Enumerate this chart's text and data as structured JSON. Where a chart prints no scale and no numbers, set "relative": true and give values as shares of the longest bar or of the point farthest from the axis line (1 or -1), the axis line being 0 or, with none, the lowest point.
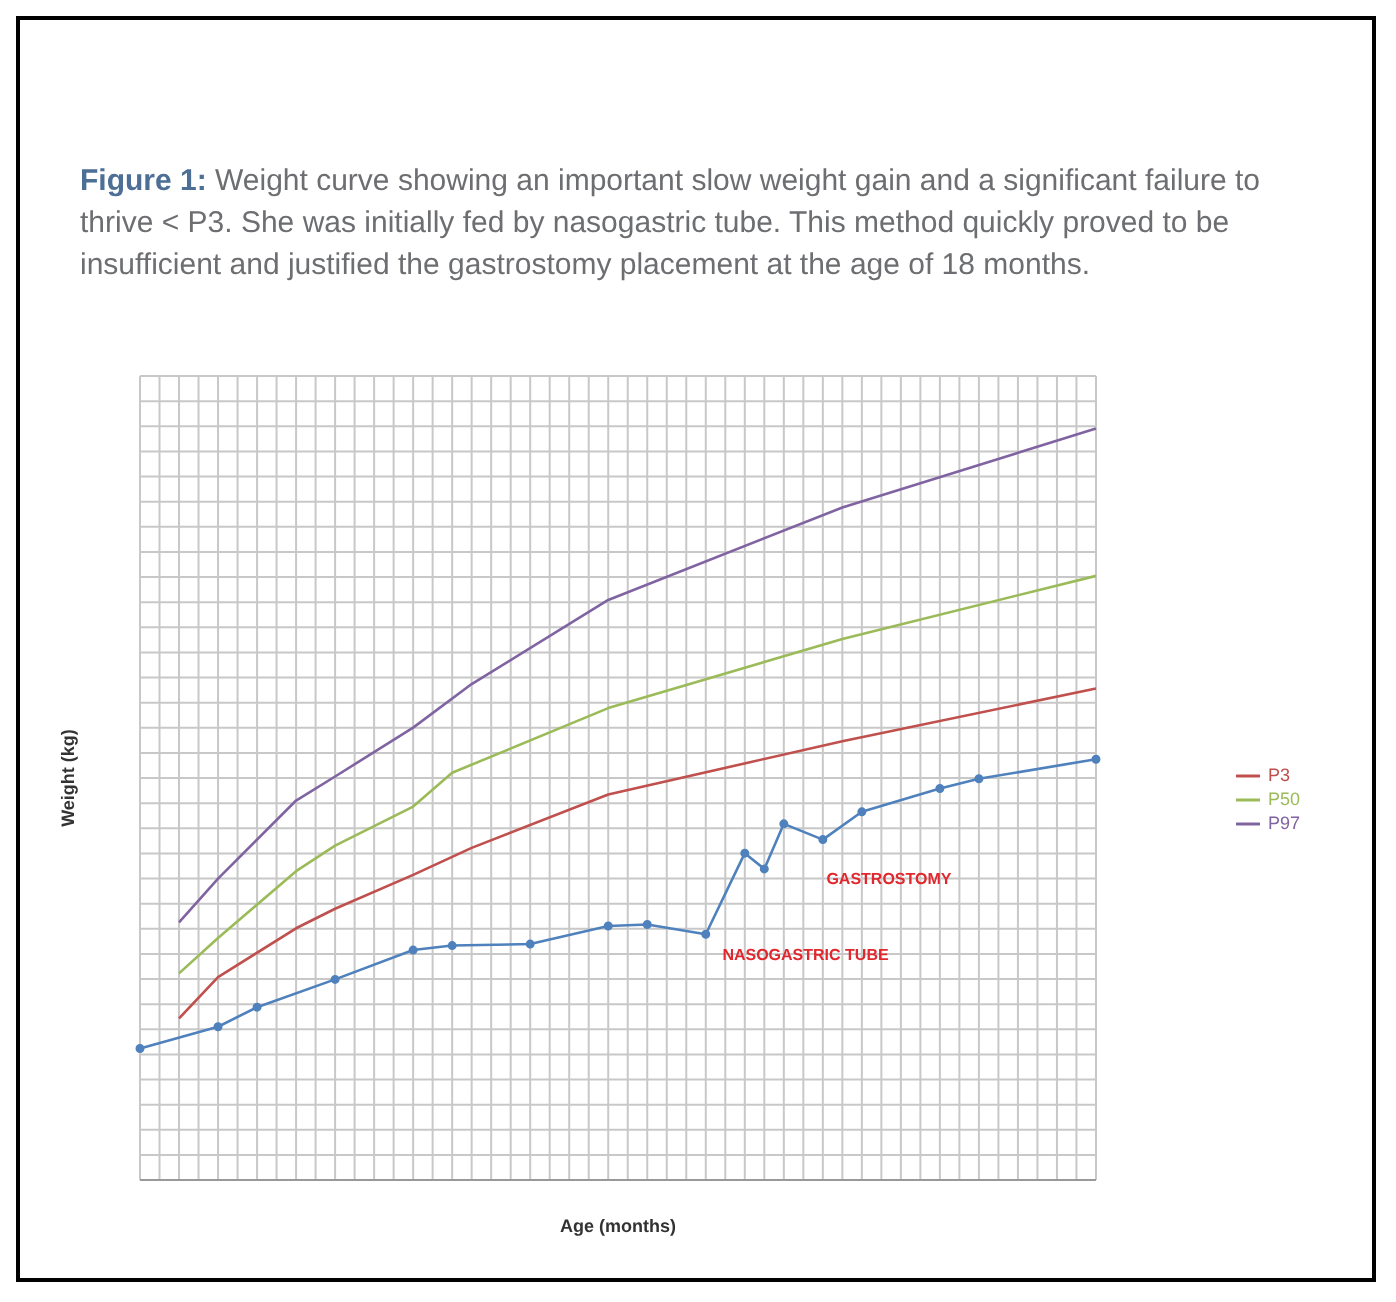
{
  "chart_data": {
    "type": "line",
    "title": "Figure 1: Weight curve showing an important slow weight gain and a significant failure to thrive < P3. She was initially fed by nasogastric tube. This method quickly proved to be insufficient and justified the gastrostomy placement at the age of 18 months.",
    "xlabel": "Age (months)",
    "ylabel": "Weight (kg)",
    "relative": true,
    "grid": true,
    "legend": "right",
    "categories": [
      null,
      null,
      null,
      null,
      null,
      null,
      null,
      null,
      null,
      null,
      null,
      null,
      null,
      null,
      null,
      null,
      null,
      null,
      null,
      null,
      null,
      null,
      null,
      null,
      null,
      null,
      null,
      null,
      null,
      null,
      null,
      null,
      null,
      null,
      null,
      null,
      null,
      null,
      null,
      null,
      null,
      null,
      null,
      null,
      null,
      null,
      null,
      null,
      null,
      null
    ],
    "series": [
      {
        "name": "P3",
        "color": "#c0504d",
        "marker": "none",
        "values": [
          null,
          null,
          0.215,
          null,
          0.27,
          null,
          null,
          null,
          0.335,
          null,
          0.361,
          null,
          null,
          null,
          0.406,
          null,
          null,
          0.442,
          null,
          null,
          null,
          null,
          null,
          null,
          0.513,
          null,
          null,
          null,
          null,
          null,
          null,
          null,
          null,
          null,
          null,
          null,
          0.584,
          null,
          null,
          null,
          null,
          null,
          null,
          null,
          null,
          null,
          null,
          null,
          null,
          0.654
        ]
      },
      {
        "name": "P50",
        "color": "#9bbb59",
        "marker": "none",
        "values": [
          null,
          null,
          0.275,
          null,
          0.322,
          null,
          null,
          null,
          0.411,
          null,
          0.445,
          null,
          null,
          null,
          0.497,
          null,
          0.542,
          null,
          null,
          null,
          null,
          null,
          null,
          null,
          0.628,
          null,
          null,
          null,
          null,
          null,
          null,
          null,
          null,
          null,
          null,
          null,
          0.72,
          null,
          null,
          null,
          null,
          null,
          null,
          null,
          null,
          null,
          null,
          null,
          null,
          0.804
        ]
      },
      {
        "name": "P97",
        "color": "#8064a2",
        "marker": "none",
        "values": [
          null,
          null,
          0.343,
          null,
          0.401,
          null,
          null,
          null,
          0.505,
          null,
          0.537,
          null,
          null,
          null,
          0.602,
          null,
          null,
          0.66,
          null,
          null,
          null,
          null,
          null,
          null,
          0.772,
          null,
          null,
          null,
          null,
          null,
          null,
          null,
          null,
          null,
          null,
          null,
          0.895,
          null,
          null,
          null,
          null,
          null,
          null,
          null,
          null,
          null,
          null,
          null,
          null,
          1
        ]
      },
      {
        "color": "#4f81bd",
        "marker": "circle",
        "values": [
          0.175,
          null,
          null,
          null,
          0.204,
          null,
          0.23,
          null,
          null,
          null,
          0.267,
          null,
          null,
          null,
          0.306,
          null,
          0.312,
          null,
          null,
          null,
          0.314,
          null,
          null,
          null,
          0.338,
          null,
          0.34,
          null,
          null,
          0.327,
          null,
          0.435,
          0.414,
          0.474,
          null,
          0.453,
          null,
          0.49,
          null,
          null,
          null,
          0.521,
          null,
          0.534,
          null,
          null,
          null,
          null,
          null,
          0.56
        ]
      }
    ],
    "annotations": [
      "GASTROSTOMY",
      "NASOGASTRIC TUBE"
    ]
  }
}
